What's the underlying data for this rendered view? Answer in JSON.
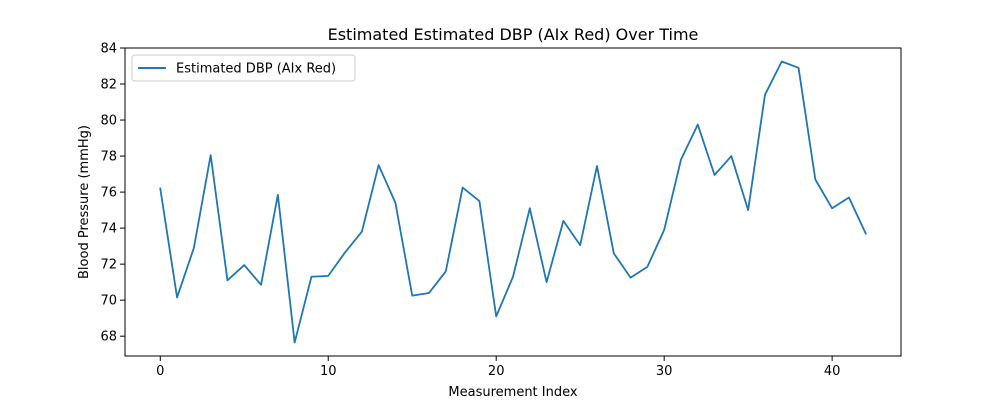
{
  "chart_data": {
    "type": "line",
    "title": "Estimated Estimated DBP (AIx Red) Over Time",
    "xlabel": "Measurement Index",
    "ylabel": "Blood Pressure (mmHg)",
    "xlim": [
      -2.1,
      44.1
    ],
    "ylim": [
      66.9,
      84.0
    ],
    "xticks": [
      0,
      10,
      20,
      30,
      40
    ],
    "yticks": [
      68,
      70,
      72,
      74,
      76,
      78,
      80,
      82,
      84
    ],
    "grid": false,
    "legend_position": "top-left",
    "series": [
      {
        "name": "Estimated DBP (AIx Red)",
        "color": "#1f77b4",
        "x": [
          0,
          1,
          2,
          3,
          4,
          5,
          6,
          7,
          8,
          9,
          10,
          11,
          12,
          13,
          14,
          15,
          16,
          17,
          18,
          19,
          20,
          21,
          22,
          23,
          24,
          25,
          26,
          27,
          28,
          29,
          30,
          31,
          32,
          33,
          34,
          35,
          36,
          37,
          38,
          39,
          40,
          41,
          42
        ],
        "values": [
          76.2,
          70.15,
          72.9,
          78.05,
          71.1,
          71.95,
          70.85,
          75.85,
          67.65,
          71.3,
          71.35,
          72.65,
          73.8,
          77.5,
          75.4,
          70.25,
          70.4,
          71.6,
          76.25,
          75.5,
          69.1,
          71.3,
          75.1,
          71.0,
          74.4,
          73.05,
          77.45,
          72.6,
          71.25,
          71.85,
          73.9,
          77.8,
          79.75,
          76.95,
          78.0,
          75.0,
          81.4,
          83.25,
          82.9,
          76.7,
          75.1,
          75.7,
          73.7
        ]
      }
    ]
  }
}
